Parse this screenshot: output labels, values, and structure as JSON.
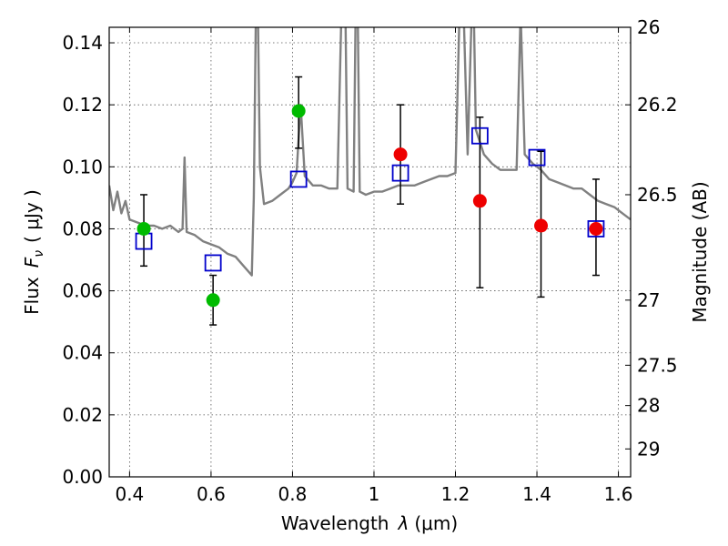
{
  "chart_data": {
    "type": "scatter",
    "xlabel": "Wavelength",
    "xlabel_symbol": "λ",
    "xlabel_unit": "(μm)",
    "ylabel": "Flux",
    "ylabel_symbol": "F",
    "ylabel_symbol_sub": "ν",
    "ylabel_unit": "( μJy )",
    "y2label": "Magnitude (AB)",
    "xlim": [
      0.35,
      1.63
    ],
    "ylim": [
      0.0,
      0.145
    ],
    "grid": true,
    "x_ticks": [
      0.4,
      0.6,
      0.8,
      1.0,
      1.2,
      1.4,
      1.6
    ],
    "x_tick_labels": [
      "0.4",
      "0.6",
      "0.8",
      "1",
      "1.2",
      "1.4",
      "1.6"
    ],
    "y_ticks": [
      0.0,
      0.02,
      0.04,
      0.06,
      0.08,
      0.1,
      0.12,
      0.14
    ],
    "y_tick_labels": [
      "0.00",
      "0.02",
      "0.04",
      "0.06",
      "0.08",
      "0.10",
      "0.12",
      "0.14"
    ],
    "y2_ticks": [
      {
        "label": "26",
        "flux": 0.145
      },
      {
        "label": "26.2",
        "flux": 0.12
      },
      {
        "label": "26.5",
        "flux": 0.091
      },
      {
        "label": "27",
        "flux": 0.057
      },
      {
        "label": "27.5",
        "flux": 0.036
      },
      {
        "label": "28",
        "flux": 0.023
      },
      {
        "label": "29",
        "flux": 0.009
      }
    ],
    "model_sed": {
      "color": "#808080",
      "points": [
        [
          0.35,
          0.094
        ],
        [
          0.36,
          0.086
        ],
        [
          0.37,
          0.092
        ],
        [
          0.38,
          0.085
        ],
        [
          0.39,
          0.089
        ],
        [
          0.4,
          0.083
        ],
        [
          0.42,
          0.082
        ],
        [
          0.44,
          0.081
        ],
        [
          0.46,
          0.081
        ],
        [
          0.48,
          0.08
        ],
        [
          0.5,
          0.081
        ],
        [
          0.52,
          0.079
        ],
        [
          0.53,
          0.08
        ],
        [
          0.535,
          0.103
        ],
        [
          0.54,
          0.079
        ],
        [
          0.56,
          0.078
        ],
        [
          0.58,
          0.076
        ],
        [
          0.6,
          0.075
        ],
        [
          0.62,
          0.074
        ],
        [
          0.64,
          0.072
        ],
        [
          0.66,
          0.071
        ],
        [
          0.68,
          0.068
        ],
        [
          0.7,
          0.065
        ],
        [
          0.705,
          0.09
        ],
        [
          0.71,
          0.15
        ],
        [
          0.715,
          0.15
        ],
        [
          0.72,
          0.1
        ],
        [
          0.73,
          0.088
        ],
        [
          0.75,
          0.089
        ],
        [
          0.77,
          0.091
        ],
        [
          0.79,
          0.093
        ],
        [
          0.8,
          0.095
        ],
        [
          0.81,
          0.098
        ],
        [
          0.82,
          0.12
        ],
        [
          0.83,
          0.097
        ],
        [
          0.85,
          0.094
        ],
        [
          0.87,
          0.094
        ],
        [
          0.89,
          0.093
        ],
        [
          0.91,
          0.093
        ],
        [
          0.92,
          0.15
        ],
        [
          0.93,
          0.15
        ],
        [
          0.935,
          0.093
        ],
        [
          0.95,
          0.092
        ],
        [
          0.955,
          0.15
        ],
        [
          0.96,
          0.15
        ],
        [
          0.965,
          0.092
        ],
        [
          0.98,
          0.091
        ],
        [
          1.0,
          0.092
        ],
        [
          1.02,
          0.092
        ],
        [
          1.04,
          0.093
        ],
        [
          1.06,
          0.094
        ],
        [
          1.08,
          0.094
        ],
        [
          1.1,
          0.094
        ],
        [
          1.12,
          0.095
        ],
        [
          1.14,
          0.096
        ],
        [
          1.16,
          0.097
        ],
        [
          1.18,
          0.097
        ],
        [
          1.2,
          0.098
        ],
        [
          1.21,
          0.15
        ],
        [
          1.22,
          0.15
        ],
        [
          1.23,
          0.104
        ],
        [
          1.24,
          0.15
        ],
        [
          1.245,
          0.15
        ],
        [
          1.25,
          0.112
        ],
        [
          1.27,
          0.104
        ],
        [
          1.29,
          0.101
        ],
        [
          1.31,
          0.099
        ],
        [
          1.33,
          0.099
        ],
        [
          1.35,
          0.099
        ],
        [
          1.36,
          0.15
        ],
        [
          1.37,
          0.104
        ],
        [
          1.39,
          0.101
        ],
        [
          1.41,
          0.099
        ],
        [
          1.43,
          0.096
        ],
        [
          1.45,
          0.095
        ],
        [
          1.47,
          0.094
        ],
        [
          1.49,
          0.093
        ],
        [
          1.51,
          0.093
        ],
        [
          1.53,
          0.091
        ],
        [
          1.55,
          0.089
        ],
        [
          1.57,
          0.088
        ],
        [
          1.59,
          0.087
        ],
        [
          1.61,
          0.085
        ],
        [
          1.63,
          0.083
        ]
      ]
    },
    "observed_green": {
      "color": "#00bb00",
      "points": [
        {
          "x": 0.435,
          "y": 0.08,
          "yerr_low": 0.068,
          "yerr_high": 0.091
        },
        {
          "x": 0.605,
          "y": 0.057,
          "yerr_low": 0.049,
          "yerr_high": 0.065
        },
        {
          "x": 0.815,
          "y": 0.118,
          "yerr_low": 0.106,
          "yerr_high": 0.129
        }
      ]
    },
    "observed_red": {
      "color": "#ee0000",
      "points": [
        {
          "x": 1.065,
          "y": 0.104,
          "yerr_low": 0.088,
          "yerr_high": 0.12
        },
        {
          "x": 1.26,
          "y": 0.089,
          "yerr_low": 0.061,
          "yerr_high": 0.116
        },
        {
          "x": 1.41,
          "y": 0.081,
          "yerr_low": 0.058,
          "yerr_high": 0.105
        },
        {
          "x": 1.545,
          "y": 0.08,
          "yerr_low": 0.065,
          "yerr_high": 0.096
        }
      ]
    },
    "model_bands": {
      "color": "#0000cc",
      "points": [
        {
          "x": 0.435,
          "y": 0.076
        },
        {
          "x": 0.605,
          "y": 0.069
        },
        {
          "x": 0.815,
          "y": 0.096
        },
        {
          "x": 1.065,
          "y": 0.098
        },
        {
          "x": 1.26,
          "y": 0.11
        },
        {
          "x": 1.4,
          "y": 0.103
        },
        {
          "x": 1.545,
          "y": 0.08
        }
      ]
    }
  }
}
